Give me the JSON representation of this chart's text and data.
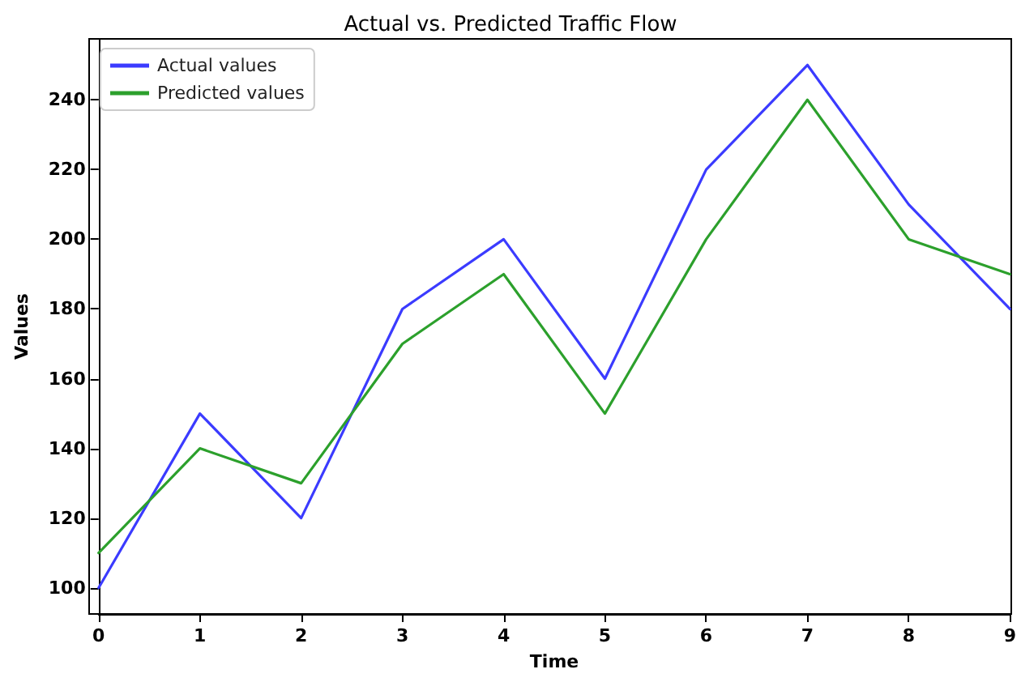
{
  "chart_data": {
    "type": "line",
    "title": "Actual vs. Predicted Traffic Flow",
    "xlabel": "Time",
    "ylabel": "Values",
    "x": [
      0,
      1,
      2,
      3,
      4,
      5,
      6,
      7,
      8,
      9
    ],
    "series": [
      {
        "name": "Actual values",
        "color": "#3b3bff",
        "values": [
          100,
          150,
          120,
          180,
          200,
          160,
          220,
          250,
          210,
          180
        ]
      },
      {
        "name": "Predicted values",
        "color": "#2ca02c",
        "values": [
          110,
          140,
          130,
          170,
          190,
          150,
          200,
          240,
          200,
          190
        ]
      }
    ],
    "xlim": [
      0,
      9
    ],
    "xticks": [
      0,
      1,
      2,
      3,
      4,
      5,
      6,
      7,
      8,
      9
    ],
    "ylim": [
      92.5,
      257.5
    ],
    "yticks": [
      100,
      120,
      140,
      160,
      180,
      200,
      220,
      240
    ],
    "grid": false,
    "legend": "top left",
    "marker": "none",
    "line_style": "solid"
  }
}
